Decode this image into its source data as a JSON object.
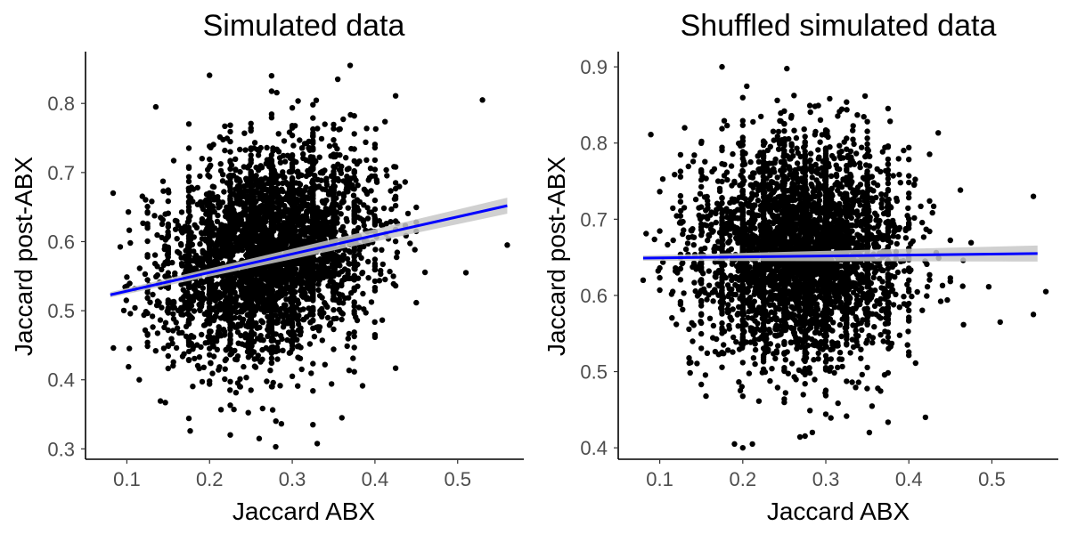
{
  "chart_data": [
    {
      "type": "scatter",
      "title": "Simulated data",
      "xlabel": "Jaccard ABX",
      "ylabel": "Jaccard post-ABX",
      "xlim": [
        0.05,
        0.58
      ],
      "ylim": [
        0.285,
        0.875
      ],
      "xticks": [
        "0.1",
        "0.2",
        "0.3",
        "0.4",
        "0.5"
      ],
      "yticks": [
        "0.3",
        "0.4",
        "0.5",
        "0.6",
        "0.7",
        "0.8"
      ],
      "grid": false,
      "point_color": "#000000",
      "fit_line_color": "#0000ff",
      "ci_band_color": "#c8c8c8",
      "point_cloud": {
        "center": [
          0.27,
          0.585
        ],
        "spread": [
          0.06,
          0.07
        ],
        "x_range": [
          0.08,
          0.56
        ],
        "y_range": [
          0.3,
          0.855
        ]
      },
      "fit_line": {
        "x": [
          0.08,
          0.56
        ],
        "y": [
          0.523,
          0.652
        ]
      },
      "highlight_points": [
        {
          "x": 0.28,
          "y": 0.303
        },
        {
          "x": 0.26,
          "y": 0.315
        },
        {
          "x": 0.37,
          "y": 0.855
        },
        {
          "x": 0.275,
          "y": 0.84
        },
        {
          "x": 0.53,
          "y": 0.805
        },
        {
          "x": 0.135,
          "y": 0.795
        },
        {
          "x": 0.56,
          "y": 0.595
        },
        {
          "x": 0.51,
          "y": 0.555
        },
        {
          "x": 0.36,
          "y": 0.345
        },
        {
          "x": 0.115,
          "y": 0.4
        },
        {
          "x": 0.325,
          "y": 0.335
        },
        {
          "x": 0.355,
          "y": 0.835
        }
      ]
    },
    {
      "type": "scatter",
      "title": "Shuffled simulated data",
      "xlabel": "Jaccard ABX",
      "ylabel": "Jaccard post-ABX",
      "xlim": [
        0.05,
        0.58
      ],
      "ylim": [
        0.385,
        0.92
      ],
      "xticks": [
        "0.1",
        "0.2",
        "0.3",
        "0.4",
        "0.5"
      ],
      "yticks": [
        "0.4",
        "0.5",
        "0.6",
        "0.7",
        "0.8",
        "0.9"
      ],
      "grid": false,
      "point_color": "#000000",
      "fit_line_color": "#0000ff",
      "ci_band_color": "#c8c8c8",
      "point_cloud": {
        "center": [
          0.27,
          0.655
        ],
        "spread": [
          0.06,
          0.07
        ],
        "x_range": [
          0.08,
          0.565
        ],
        "y_range": [
          0.4,
          0.9
        ]
      },
      "fit_line": {
        "x": [
          0.08,
          0.555
        ],
        "y": [
          0.649,
          0.655
        ]
      },
      "highlight_points": [
        {
          "x": 0.19,
          "y": 0.405
        },
        {
          "x": 0.2,
          "y": 0.4
        },
        {
          "x": 0.175,
          "y": 0.9
        },
        {
          "x": 0.565,
          "y": 0.605
        },
        {
          "x": 0.55,
          "y": 0.575
        },
        {
          "x": 0.55,
          "y": 0.73
        },
        {
          "x": 0.08,
          "y": 0.62
        },
        {
          "x": 0.42,
          "y": 0.44
        },
        {
          "x": 0.51,
          "y": 0.565
        },
        {
          "x": 0.13,
          "y": 0.82
        }
      ]
    }
  ]
}
